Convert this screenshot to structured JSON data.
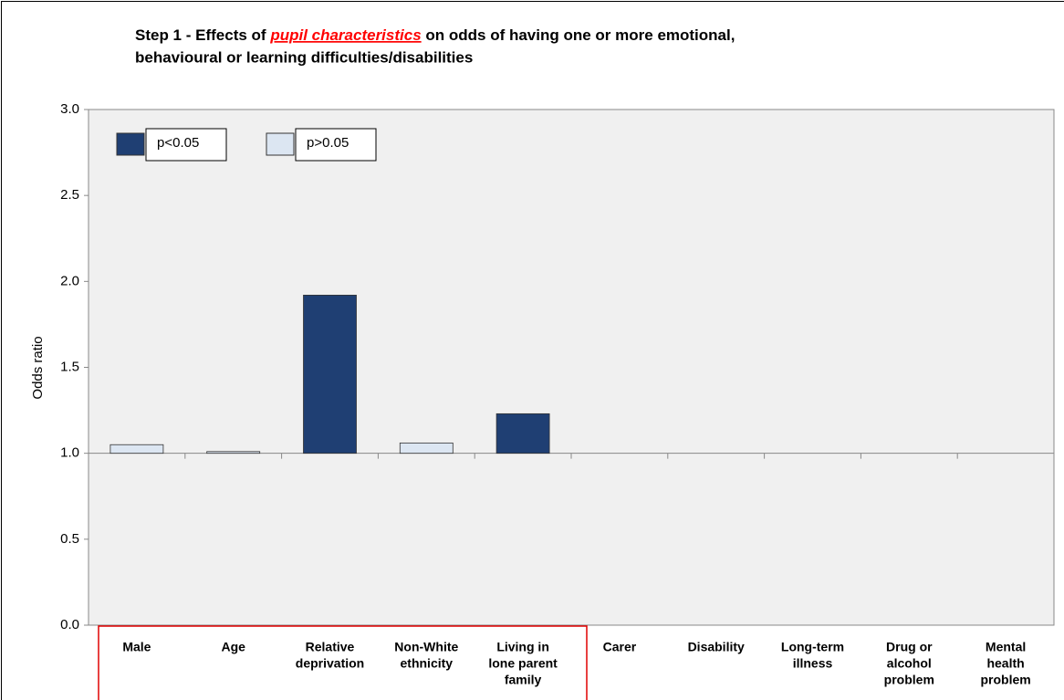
{
  "chart_data": {
    "type": "bar",
    "title": {
      "prefix": "Step 1 - Effects of ",
      "highlight": "pupil characteristics",
      "suffix": " on odds of having one or more emotional,",
      "line2": "behavioural or learning difficulties/disabilities"
    },
    "y_label": "Odds ratio",
    "categories": [
      [
        "Male"
      ],
      [
        "Age"
      ],
      [
        "Relative",
        "deprivation"
      ],
      [
        "Non-White",
        "ethnicity"
      ],
      [
        "Living in",
        "lone parent",
        "family"
      ],
      [
        "Carer"
      ],
      [
        "Disability"
      ],
      [
        "Long-term",
        "illness"
      ],
      [
        "Drug or",
        "alcohol",
        "problem"
      ],
      [
        "Mental",
        "health",
        "problem"
      ]
    ],
    "series": [
      {
        "name": "p<0.05",
        "color": "#1f3f73",
        "values": [
          null,
          null,
          1.92,
          null,
          1.23,
          null,
          null,
          null,
          null,
          null
        ]
      },
      {
        "name": "p>0.05",
        "color": "#dce6f2",
        "values": [
          1.05,
          1.01,
          null,
          1.06,
          null,
          null,
          null,
          null,
          null,
          null
        ]
      }
    ],
    "baseline": 1,
    "ylim": [
      0,
      3
    ],
    "yticks": [
      {
        "value": 0,
        "label": "0.0"
      },
      {
        "value": 0.5,
        "label": "0.5"
      },
      {
        "value": 1,
        "label": "1.0"
      },
      {
        "value": 1.5,
        "label": "1.5"
      },
      {
        "value": 2,
        "label": "2.0"
      },
      {
        "value": 2.5,
        "label": "2.5"
      },
      {
        "value": 3,
        "label": "3.0"
      }
    ],
    "legend": "top-left"
  }
}
